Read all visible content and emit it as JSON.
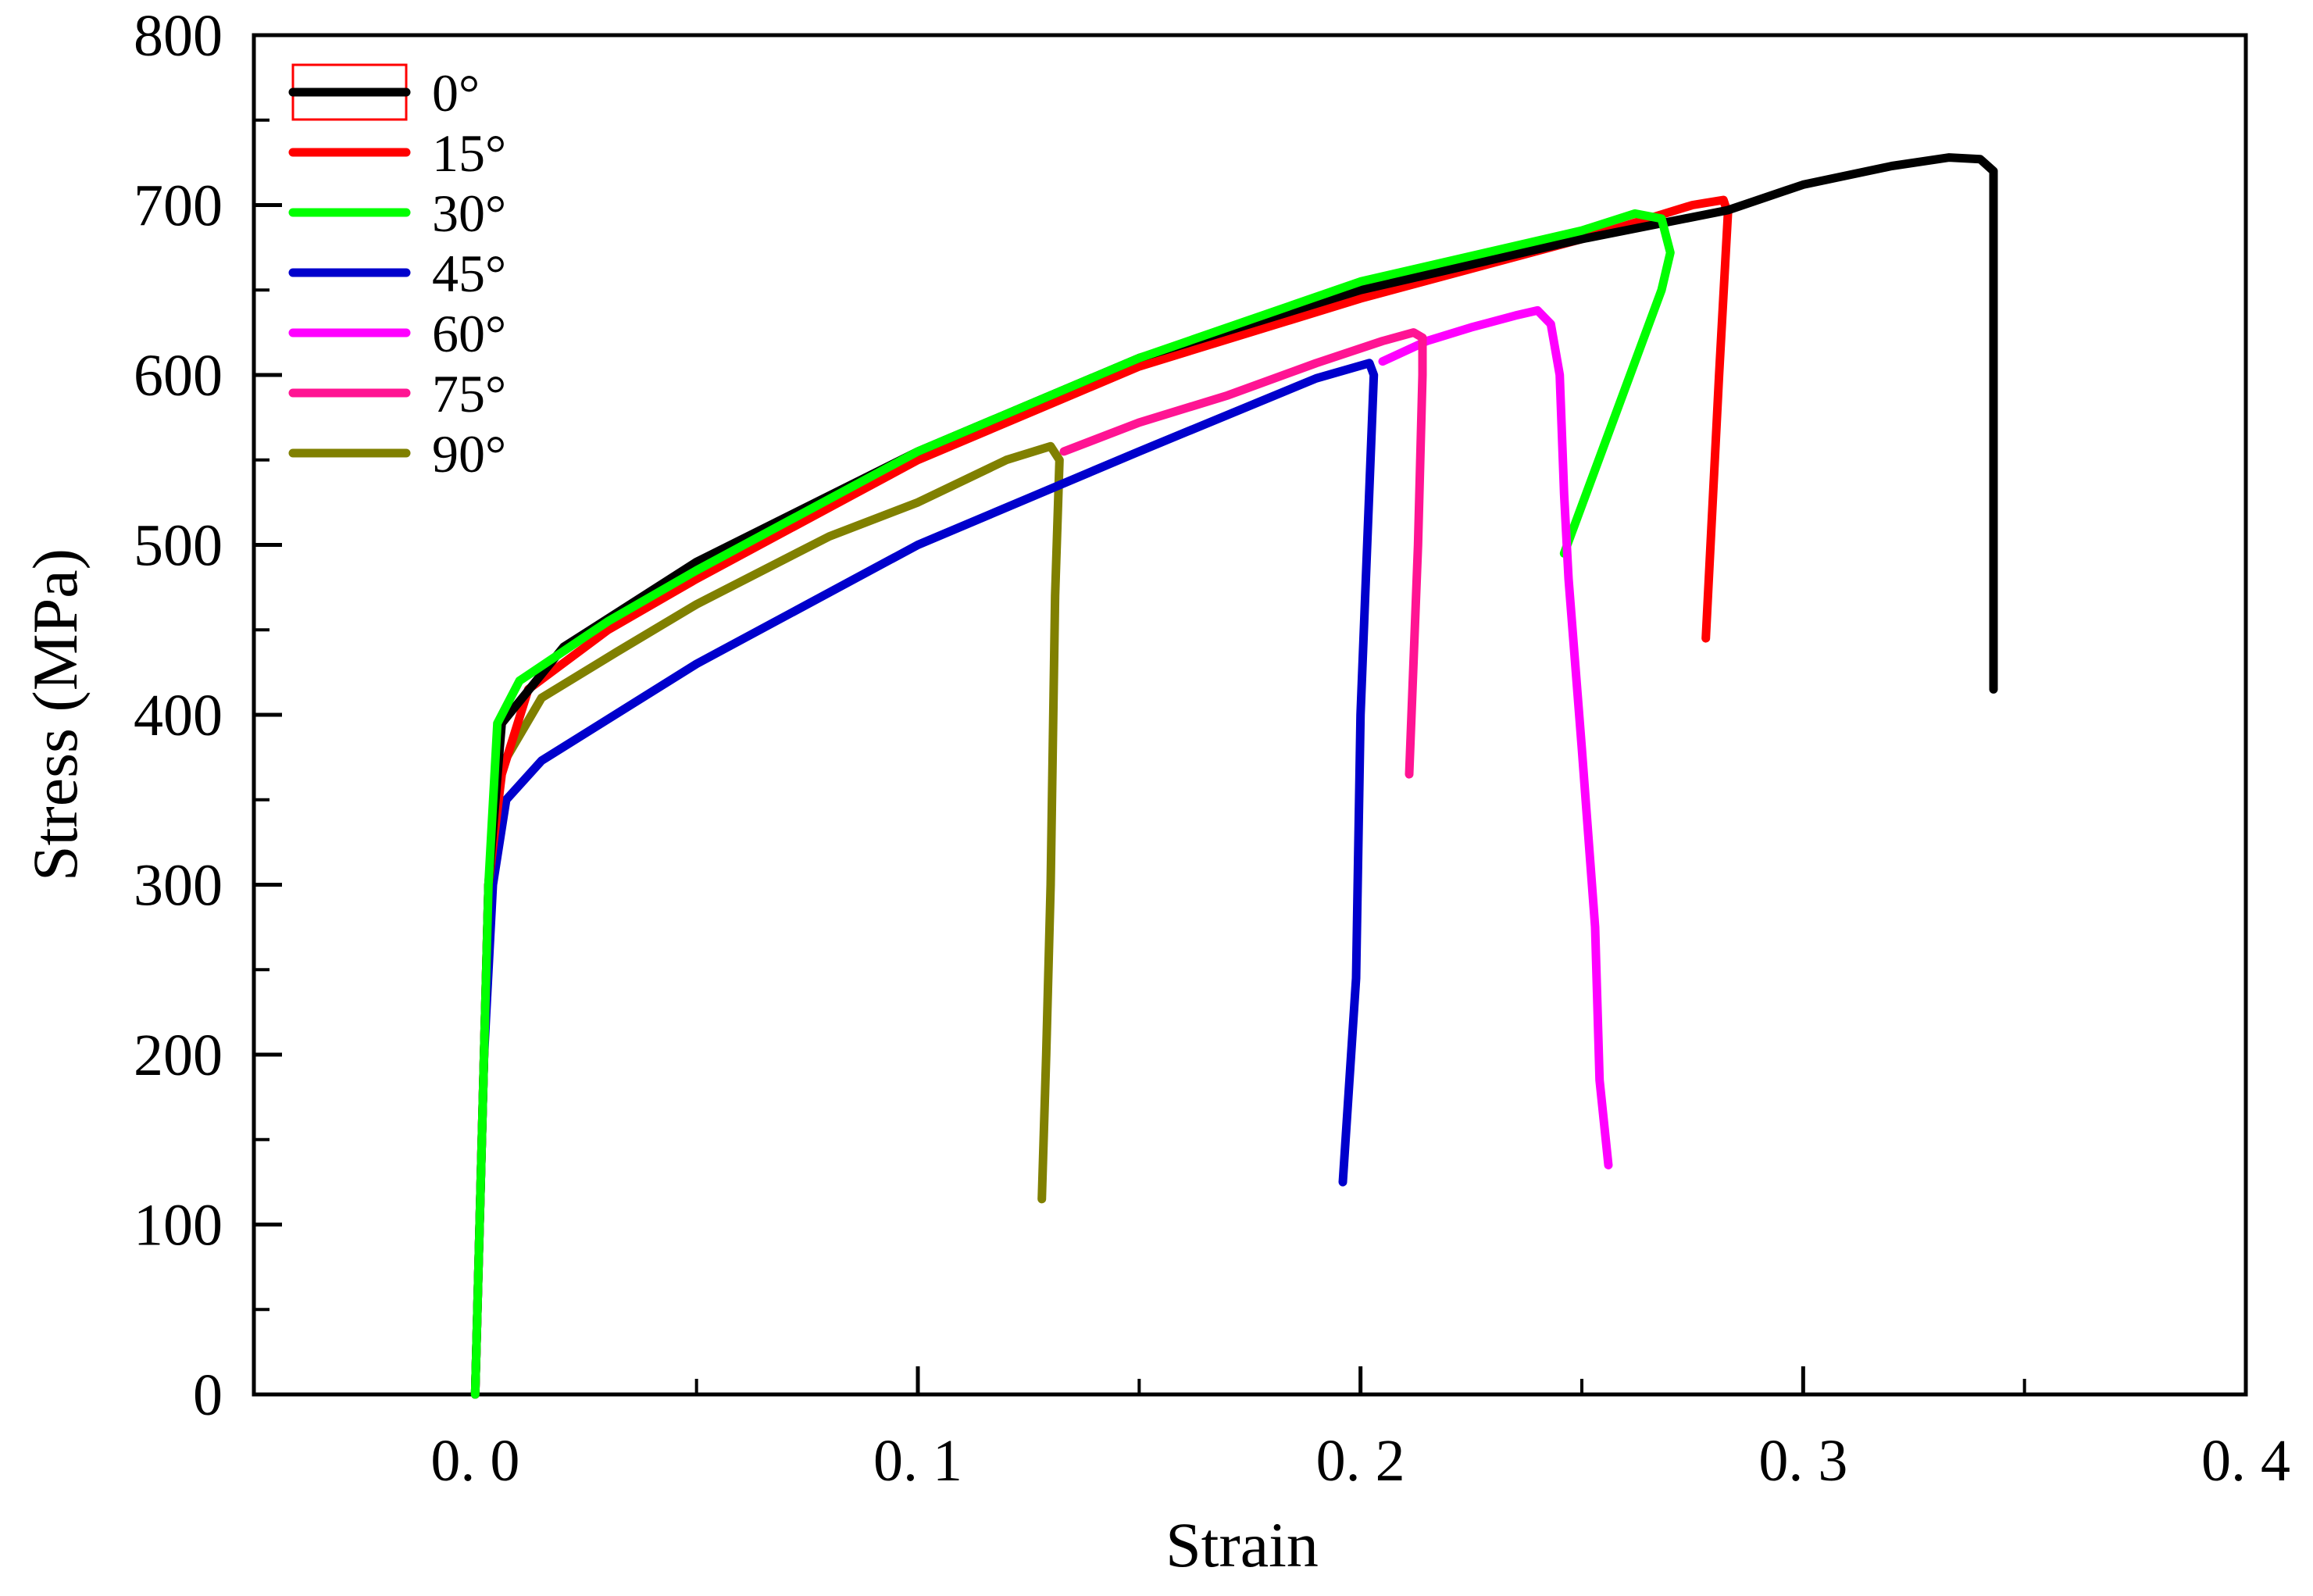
{
  "chart_data": {
    "type": "line",
    "title": "",
    "xlabel": "Strain",
    "ylabel": "Stress (MPa)",
    "xlim": [
      -0.05,
      0.4
    ],
    "ylim": [
      0,
      800
    ],
    "x_ticks": [
      0.0,
      0.1,
      0.2,
      0.3,
      0.4
    ],
    "x_tick_labels": [
      "0. 0",
      "0. 1",
      "0. 2",
      "0. 3",
      "0. 4"
    ],
    "y_ticks": [
      0,
      100,
      200,
      300,
      400,
      500,
      600,
      700,
      800
    ],
    "y_tick_labels": [
      "0",
      "100",
      "200",
      "300",
      "400",
      "500",
      "600",
      "700",
      "800"
    ],
    "grid": false,
    "legend_position": "top-left",
    "series": [
      {
        "name": "0°",
        "color": "#000000",
        "points": [
          [
            0.0,
            0
          ],
          [
            0.003,
            300
          ],
          [
            0.006,
            395
          ],
          [
            0.02,
            440
          ],
          [
            0.05,
            490
          ],
          [
            0.1,
            555
          ],
          [
            0.15,
            610
          ],
          [
            0.2,
            650
          ],
          [
            0.25,
            680
          ],
          [
            0.283,
            697
          ],
          [
            0.3,
            712
          ],
          [
            0.32,
            723
          ],
          [
            0.333,
            728
          ],
          [
            0.34,
            727
          ],
          [
            0.343,
            720
          ],
          [
            0.343,
            415
          ]
        ]
      },
      {
        "name": "15°",
        "color": "#ff0000",
        "points": [
          [
            0.0,
            0
          ],
          [
            0.003,
            300
          ],
          [
            0.006,
            365
          ],
          [
            0.012,
            415
          ],
          [
            0.03,
            450
          ],
          [
            0.05,
            480
          ],
          [
            0.1,
            550
          ],
          [
            0.15,
            605
          ],
          [
            0.2,
            645
          ],
          [
            0.25,
            680
          ],
          [
            0.275,
            700
          ],
          [
            0.282,
            703
          ],
          [
            0.283,
            695
          ],
          [
            0.281,
            600
          ],
          [
            0.278,
            445
          ]
        ]
      },
      {
        "name": "30°",
        "color": "#00ff00",
        "points": [
          [
            0.0,
            0
          ],
          [
            0.003,
            300
          ],
          [
            0.005,
            395
          ],
          [
            0.01,
            420
          ],
          [
            0.03,
            455
          ],
          [
            0.05,
            485
          ],
          [
            0.1,
            555
          ],
          [
            0.15,
            610
          ],
          [
            0.2,
            655
          ],
          [
            0.25,
            685
          ],
          [
            0.262,
            695
          ],
          [
            0.268,
            692
          ],
          [
            0.27,
            672
          ],
          [
            0.268,
            650
          ],
          [
            0.246,
            495
          ]
        ]
      },
      {
        "name": "45°",
        "color": "#0000cc",
        "points": [
          [
            0.0,
            0
          ],
          [
            0.002,
            200
          ],
          [
            0.004,
            300
          ],
          [
            0.007,
            350
          ],
          [
            0.015,
            373
          ],
          [
            0.05,
            430
          ],
          [
            0.1,
            500
          ],
          [
            0.15,
            555
          ],
          [
            0.19,
            598
          ],
          [
            0.202,
            607
          ],
          [
            0.203,
            600
          ],
          [
            0.2,
            400
          ],
          [
            0.199,
            245
          ],
          [
            0.196,
            125
          ]
        ]
      },
      {
        "name": "60°",
        "color": "#ff00ff",
        "points": [
          [
            0.205,
            608
          ],
          [
            0.215,
            620
          ],
          [
            0.225,
            628
          ],
          [
            0.235,
            635
          ],
          [
            0.24,
            638
          ],
          [
            0.243,
            630
          ],
          [
            0.245,
            600
          ],
          [
            0.246,
            530
          ],
          [
            0.247,
            480
          ],
          [
            0.25,
            380
          ],
          [
            0.253,
            275
          ],
          [
            0.254,
            185
          ],
          [
            0.256,
            135
          ]
        ]
      },
      {
        "name": "75°",
        "color": "#ff1493",
        "points": [
          [
            0.133,
            555
          ],
          [
            0.15,
            572
          ],
          [
            0.17,
            588
          ],
          [
            0.19,
            607
          ],
          [
            0.205,
            620
          ],
          [
            0.212,
            625
          ],
          [
            0.214,
            622
          ],
          [
            0.214,
            600
          ],
          [
            0.213,
            500
          ],
          [
            0.211,
            365
          ]
        ]
      },
      {
        "name": "90°",
        "color": "#808000",
        "points": [
          [
            0.0,
            0
          ],
          [
            0.003,
            300
          ],
          [
            0.006,
            370
          ],
          [
            0.015,
            410
          ],
          [
            0.032,
            437
          ],
          [
            0.05,
            465
          ],
          [
            0.08,
            505
          ],
          [
            0.1,
            525
          ],
          [
            0.12,
            550
          ],
          [
            0.13,
            558
          ],
          [
            0.132,
            550
          ],
          [
            0.131,
            470
          ],
          [
            0.13,
            300
          ],
          [
            0.129,
            200
          ],
          [
            0.128,
            115
          ]
        ]
      }
    ],
    "legend_marker": {
      "box_color": "#ff0000",
      "box_attached_to": "0°"
    }
  }
}
